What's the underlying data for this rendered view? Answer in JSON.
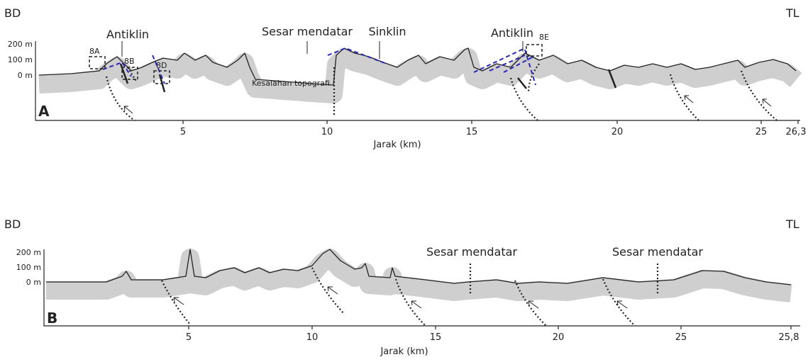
{
  "panels": [
    {
      "label": "A",
      "left": "BD",
      "right": "TL",
      "y_labels": [
        "200 m",
        "100 m",
        "0 m"
      ],
      "x_ticks": [
        "5",
        "10",
        "15",
        "20",
        "25",
        "26,3"
      ],
      "x_label": "Jarak (km)",
      "annotations": [
        "Antiklin",
        "8A",
        "8B",
        "8D",
        "Sesar mendatar",
        "Sinklin",
        "Antiklin",
        "8E",
        "Kesalahan topografi"
      ]
    },
    {
      "label": "B",
      "left": "BD",
      "right": "TL",
      "y_labels": [
        "200 m",
        "100 m",
        "0 m"
      ],
      "x_ticks": [
        "5",
        "10",
        "15",
        "20",
        "25",
        "25,8"
      ],
      "x_label": "Jarak (km)",
      "annotations": [
        "Sesar mendatar",
        "Sesar mendatar"
      ]
    }
  ]
}
